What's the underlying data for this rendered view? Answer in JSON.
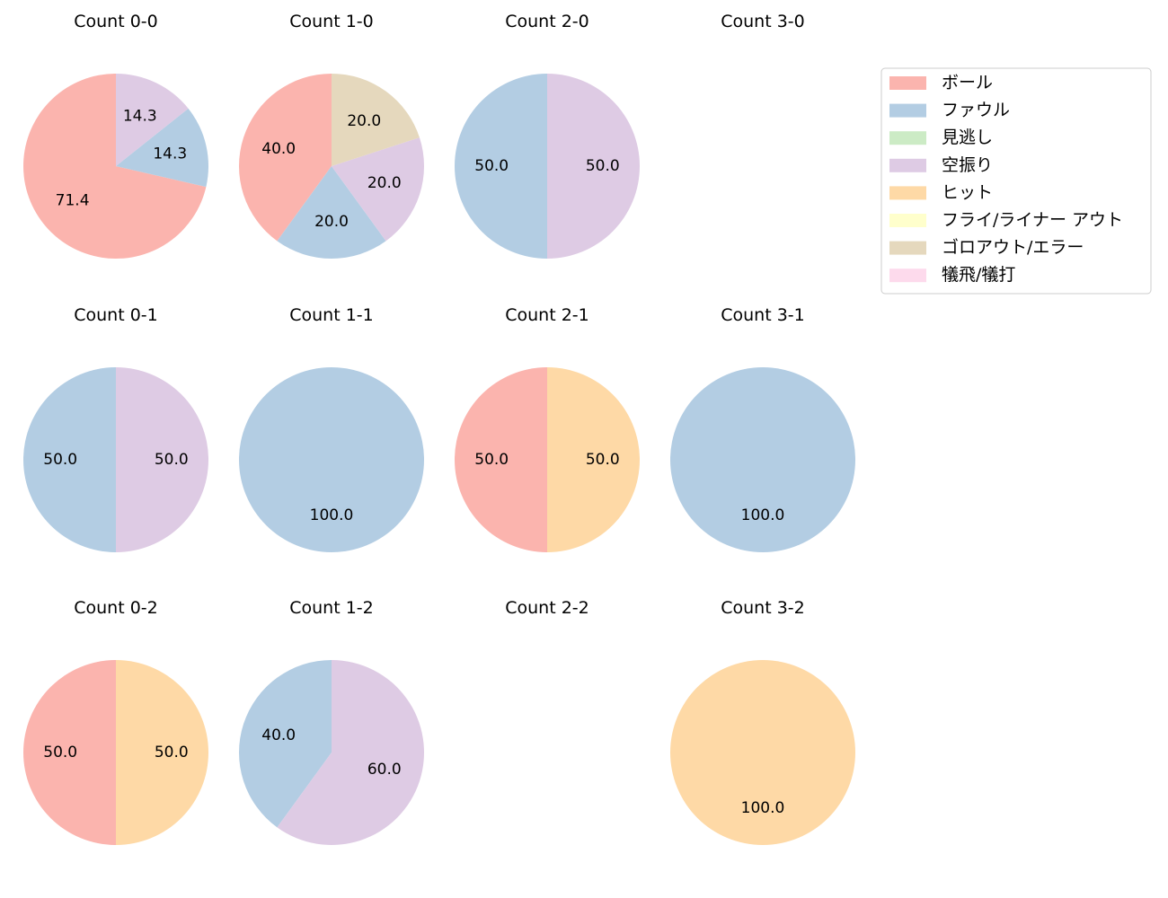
{
  "legend": {
    "items": [
      {
        "label": "ボール",
        "color": "#fbb4ae"
      },
      {
        "label": "ファウル",
        "color": "#b3cde3"
      },
      {
        "label": "見逃し",
        "color": "#ccebc5"
      },
      {
        "label": "空振り",
        "color": "#decbe4"
      },
      {
        "label": "ヒット",
        "color": "#fed9a6"
      },
      {
        "label": "フライ/ライナー アウト",
        "color": "#ffffcc"
      },
      {
        "label": "ゴロアウト/エラー",
        "color": "#e5d8bd"
      },
      {
        "label": "犠飛/犠打",
        "color": "#fddaec"
      }
    ]
  },
  "chart_data": [
    {
      "type": "pie",
      "title": "Count 0-0",
      "slices": [
        {
          "category": "ボール",
          "value": 71.4
        },
        {
          "category": "ファウル",
          "value": 14.3
        },
        {
          "category": "空振り",
          "value": 14.3
        }
      ]
    },
    {
      "type": "pie",
      "title": "Count 1-0",
      "slices": [
        {
          "category": "ボール",
          "value": 40.0
        },
        {
          "category": "ファウル",
          "value": 20.0
        },
        {
          "category": "空振り",
          "value": 20.0
        },
        {
          "category": "ゴロアウト/エラー",
          "value": 20.0
        }
      ]
    },
    {
      "type": "pie",
      "title": "Count 2-0",
      "slices": [
        {
          "category": "ファウル",
          "value": 50.0
        },
        {
          "category": "空振り",
          "value": 50.0
        }
      ]
    },
    {
      "type": "pie",
      "title": "Count 3-0",
      "slices": []
    },
    {
      "type": "pie",
      "title": "Count 0-1",
      "slices": [
        {
          "category": "ファウル",
          "value": 50.0
        },
        {
          "category": "空振り",
          "value": 50.0
        }
      ]
    },
    {
      "type": "pie",
      "title": "Count 1-1",
      "slices": [
        {
          "category": "ファウル",
          "value": 100.0
        }
      ]
    },
    {
      "type": "pie",
      "title": "Count 2-1",
      "slices": [
        {
          "category": "ボール",
          "value": 50.0
        },
        {
          "category": "ヒット",
          "value": 50.0
        }
      ]
    },
    {
      "type": "pie",
      "title": "Count 3-1",
      "slices": [
        {
          "category": "ファウル",
          "value": 100.0
        }
      ]
    },
    {
      "type": "pie",
      "title": "Count 0-2",
      "slices": [
        {
          "category": "ボール",
          "value": 50.0
        },
        {
          "category": "ヒット",
          "value": 50.0
        }
      ]
    },
    {
      "type": "pie",
      "title": "Count 1-2",
      "slices": [
        {
          "category": "ファウル",
          "value": 40.0
        },
        {
          "category": "空振り",
          "value": 60.0
        }
      ]
    },
    {
      "type": "pie",
      "title": "Count 2-2",
      "slices": []
    },
    {
      "type": "pie",
      "title": "Count 3-2",
      "slices": [
        {
          "category": "ヒット",
          "value": 100.0
        }
      ]
    }
  ]
}
